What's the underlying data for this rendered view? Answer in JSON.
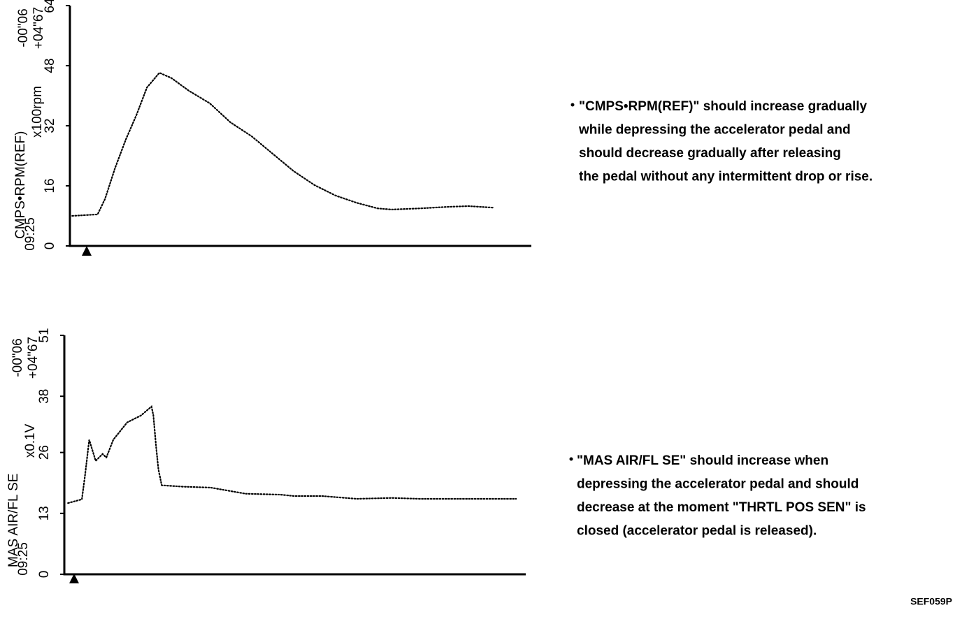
{
  "chart_data": [
    {
      "type": "line",
      "ylabel": "CMPS•RPM(REF)",
      "yunit": "x100rpm",
      "time_start": "09:25",
      "time_offsets": [
        "-00\"06",
        "+04\"67"
      ],
      "ylim": [
        0,
        64
      ],
      "yticks": [
        0,
        16,
        32,
        48,
        64
      ],
      "xlim": [
        0,
        100
      ],
      "x": [
        0.5,
        6,
        7.6,
        9.8,
        12.1,
        14.4,
        16.7,
        19.4,
        22,
        25.8,
        30.3,
        34.8,
        39.4,
        43.9,
        48.5,
        53,
        57.6,
        62.1,
        66.7,
        69.7,
        75.8,
        81.8,
        86.4,
        91.7
      ],
      "values": [
        8,
        8.4,
        12.5,
        20.8,
        28.3,
        34.8,
        42.2,
        46.1,
        44.7,
        41.3,
        38,
        32.9,
        29.2,
        24.6,
        19.9,
        16.2,
        13.4,
        11.5,
        10,
        9.7,
        10,
        10.4,
        10.6,
        10.2
      ],
      "color": "#000000",
      "annotation": [
        "\"CMPS•RPM(REF)\" should increase gradually",
        "while depressing the accelerator pedal and",
        "should decrease gradually after releasing",
        "the pedal without any intermittent drop or rise."
      ]
    },
    {
      "type": "line",
      "ylabel": "MAS AIR/FL SE",
      "yunit": "x0.1V",
      "time_start": "09:25",
      "time_offsets": [
        "-00\"06",
        "+04\"67"
      ],
      "ylim": [
        0,
        51
      ],
      "yticks": [
        0,
        13,
        26,
        38,
        51
      ],
      "xlim": [
        0,
        100
      ],
      "x": [
        0.8,
        3.8,
        4.5,
        5.4,
        6.8,
        8.3,
        9.1,
        10.6,
        13.6,
        16.6,
        18.9,
        19.3,
        19.9,
        20.4,
        21.1,
        25.7,
        31.7,
        39.3,
        46.8,
        49.8,
        55.9,
        63.4,
        71,
        77,
        84.6,
        92.1,
        97.9
      ],
      "values": [
        15.2,
        16,
        21.2,
        28.7,
        24.2,
        25.7,
        24.9,
        28.7,
        32.4,
        33.9,
        35.8,
        33.9,
        27.2,
        22.4,
        19,
        18.7,
        18.5,
        17.2,
        17,
        16.7,
        16.7,
        16.1,
        16.3,
        16.1,
        16.1,
        16.1,
        16.1
      ],
      "color": "#000000",
      "annotation": [
        "\"MAS AIR/FL SE\" should increase when",
        "depressing the accelerator pedal and should",
        "decrease at the moment \"THRTL POS SEN\" is",
        "closed (accelerator pedal is released)."
      ]
    }
  ],
  "figure_code": "SEF059P"
}
